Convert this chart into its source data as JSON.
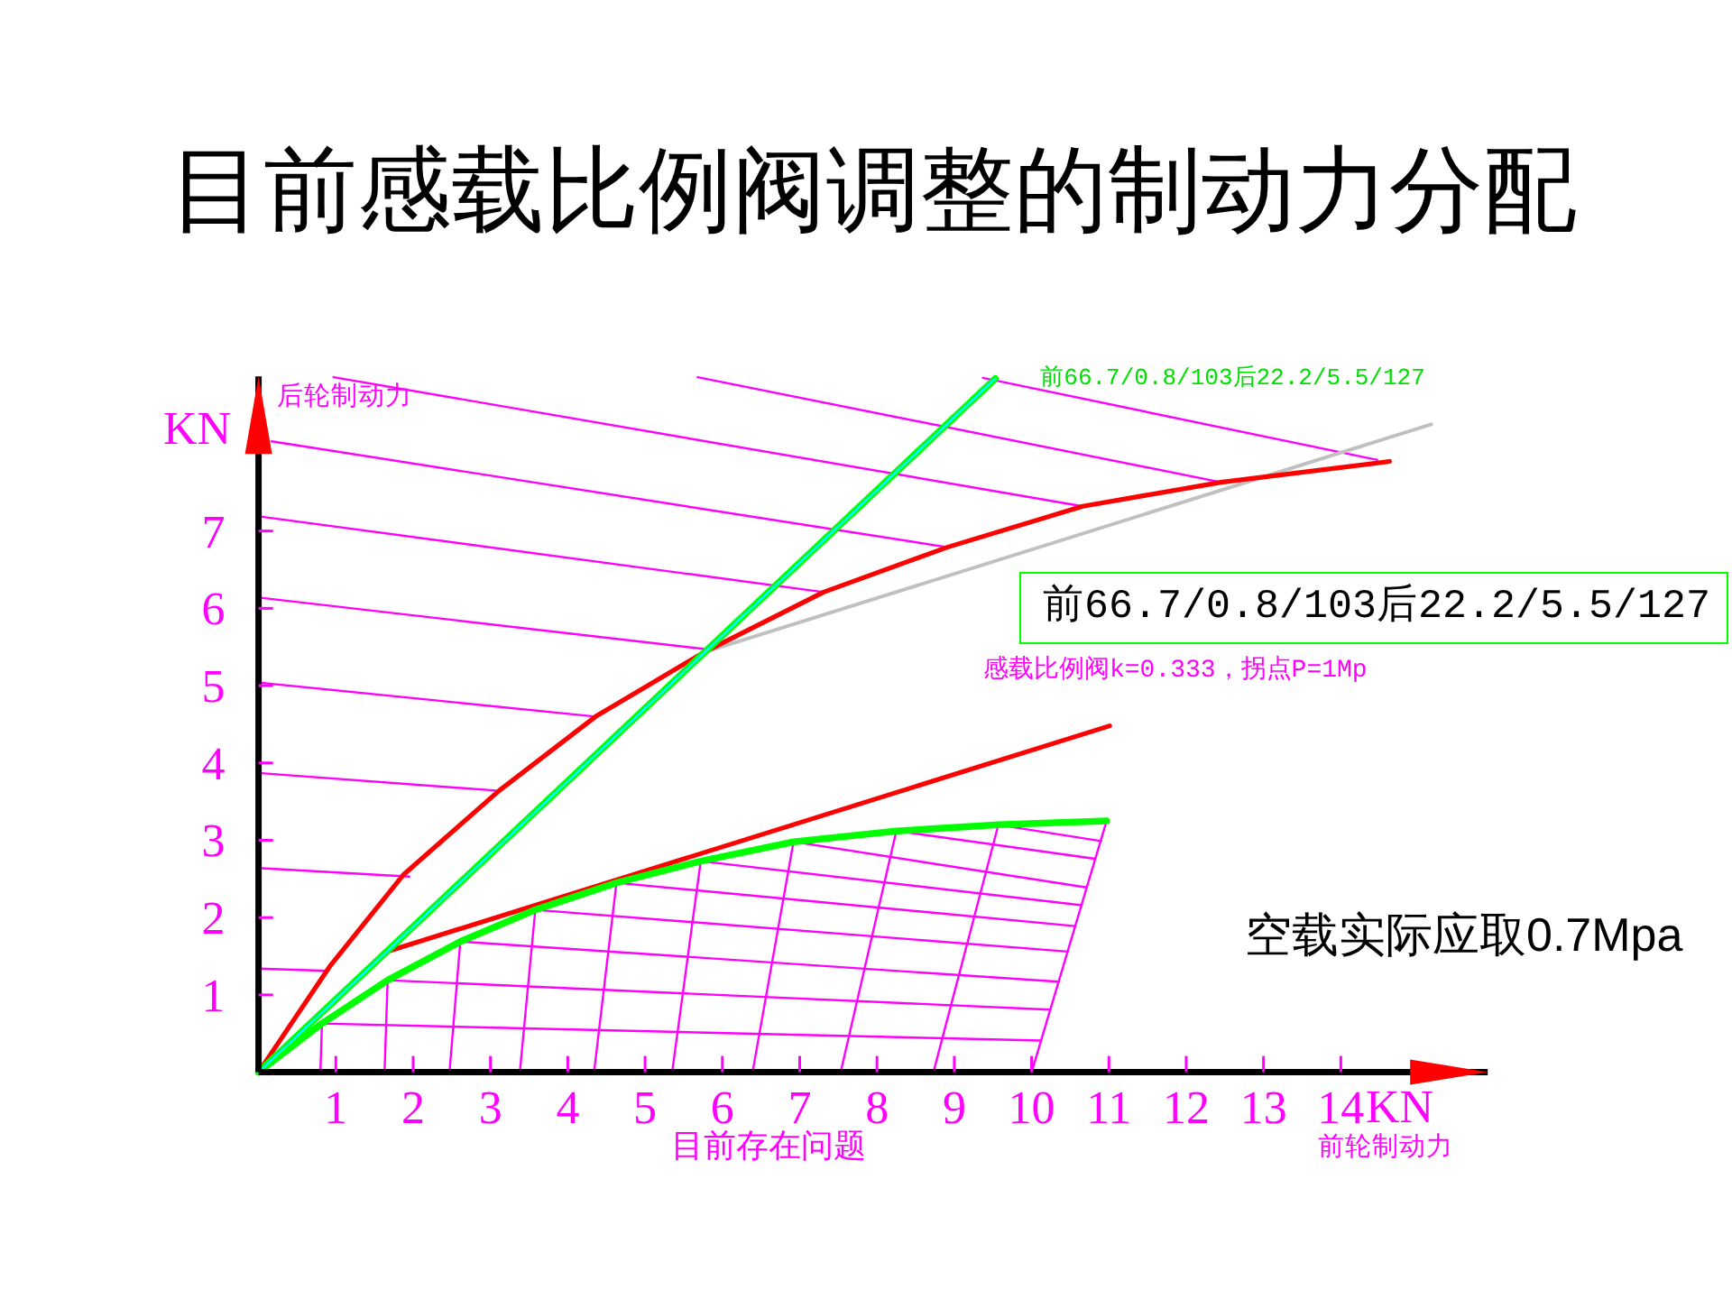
{
  "chart_data": {
    "type": "line",
    "title": "目前感载比例阀调整的制动力分配",
    "xlabel": "前轮制动力",
    "ylabel": "后轮制动力",
    "annotations": [
      "KN",
      "KN",
      "目前存在问题",
      {
        "text": "前66.7/0.8/103后22.2/5.5/127",
        "x": 9.53,
        "y": 8.97
      },
      "前66.7/0.8/103后22.2/5.5/127",
      "感载比例阀k=0.333，拐点P=1Mp",
      "空载实际应取0.7Mpa"
    ],
    "xlim": [
      0,
      15.9
    ],
    "ylim": [
      0,
      9.0
    ],
    "xticks": [
      1,
      2,
      3,
      4,
      5,
      6,
      7,
      8,
      9,
      10,
      11,
      12,
      13,
      14
    ],
    "yticks": [
      1,
      2,
      3,
      4,
      5,
      6,
      7
    ],
    "line_style": "solid",
    "series": [
      {
        "color": "#ff00ff",
        "x": [
          9.37,
          14.47
        ],
        "values": [
          8.98,
          7.92
        ]
      },
      {
        "color": "#ff00ff",
        "x": [
          5.68,
          12.45
        ],
        "values": [
          8.99,
          7.63
        ]
      },
      {
        "color": "#ff00ff",
        "x": [
          0.97,
          10.66
        ],
        "values": [
          8.99,
          7.32
        ]
      },
      {
        "color": "#ff00ff",
        "x": [
          0.17,
          8.91
        ],
        "values": [
          8.16,
          6.79
        ]
      },
      {
        "color": "#ff00ff",
        "x": [
          0,
          7.31
        ],
        "values": [
          7.19,
          6.21
        ]
      },
      {
        "color": "#ff00ff",
        "x": [
          0,
          5.8
        ],
        "values": [
          6.14,
          5.47
        ]
      },
      {
        "color": "#ff00ff",
        "x": [
          0,
          4.36
        ],
        "values": [
          5.04,
          4.6
        ]
      },
      {
        "color": "#ff00ff",
        "x": [
          0,
          3.11
        ],
        "values": [
          3.87,
          3.64
        ]
      },
      {
        "color": "#ff00ff",
        "x": [
          0,
          1.95
        ],
        "values": [
          2.64,
          2.53
        ]
      },
      {
        "color": "#ff00ff",
        "x": [
          0,
          0.9
        ],
        "values": [
          1.34,
          1.31
        ]
      },
      {
        "color": "#ff00ff",
        "x": [
          0.8,
          0.82
        ],
        "values": [
          0,
          0.63
        ]
      },
      {
        "color": "#ff00ff",
        "x": [
          1.63,
          1.67
        ],
        "values": [
          0,
          1.19
        ]
      },
      {
        "color": "#ff00ff",
        "x": [
          2.47,
          2.61
        ],
        "values": [
          0,
          1.69
        ]
      },
      {
        "color": "#ff00ff",
        "x": [
          3.38,
          3.58
        ],
        "values": [
          0,
          2.1
        ]
      },
      {
        "color": "#ff00ff",
        "x": [
          4.34,
          4.63
        ],
        "values": [
          0,
          2.45
        ]
      },
      {
        "color": "#ff00ff",
        "x": [
          5.35,
          5.72
        ],
        "values": [
          0,
          2.73
        ]
      },
      {
        "color": "#ff00ff",
        "x": [
          6.39,
          6.92
        ],
        "values": [
          0,
          2.98
        ]
      },
      {
        "color": "#ff00ff",
        "x": [
          7.53,
          8.25
        ],
        "values": [
          0,
          3.12
        ]
      },
      {
        "color": "#ff00ff",
        "x": [
          8.73,
          9.57
        ],
        "values": [
          0,
          3.2
        ]
      },
      {
        "color": "#ff00ff",
        "x": [
          10.0,
          10.97
        ],
        "values": [
          0,
          3.25
        ]
      },
      {
        "color": "#ff00ff",
        "x": [
          0.82,
          10.12
        ],
        "values": [
          0.63,
          0.41
        ]
      },
      {
        "color": "#ff00ff",
        "x": [
          1.67,
          10.24
        ],
        "values": [
          1.19,
          0.81
        ]
      },
      {
        "color": "#ff00ff",
        "x": [
          2.61,
          10.35
        ],
        "values": [
          1.69,
          1.17
        ]
      },
      {
        "color": "#ff00ff",
        "x": [
          3.58,
          10.47
        ],
        "values": [
          2.1,
          1.56
        ]
      },
      {
        "color": "#ff00ff",
        "x": [
          4.63,
          10.56
        ],
        "values": [
          2.45,
          1.89
        ]
      },
      {
        "color": "#ff00ff",
        "x": [
          5.72,
          10.65
        ],
        "values": [
          2.73,
          2.16
        ]
      },
      {
        "color": "#ff00ff",
        "x": [
          6.92,
          10.71
        ],
        "values": [
          2.98,
          2.39
        ]
      },
      {
        "color": "#ff00ff",
        "x": [
          8.25,
          10.82
        ],
        "values": [
          3.12,
          2.76
        ]
      },
      {
        "color": "#ff00ff",
        "x": [
          9.57,
          10.9
        ],
        "values": [
          3.2,
          2.99
        ]
      },
      {
        "color": "#c0c0c0",
        "x": [
          5.76,
          15.17
        ],
        "values": [
          5.43,
          8.38
        ]
      },
      {
        "color": "#ff0000",
        "x": [
          1.63,
          11.01
        ],
        "values": [
          1.55,
          4.48
        ]
      },
      {
        "color": "#00ff00",
        "x": [
          0,
          0.82,
          1.67,
          2.61,
          3.58,
          4.63,
          5.72,
          6.92,
          8.25,
          9.57,
          10.97
        ],
        "values": [
          0,
          0.63,
          1.19,
          1.69,
          2.1,
          2.45,
          2.73,
          2.98,
          3.12,
          3.2,
          3.25
        ]
      },
      {
        "color": "#ff0000",
        "x": [
          0,
          0.93,
          1.87,
          3.11,
          4.36,
          5.76,
          7.31,
          8.91,
          10.66,
          12.45,
          14.63
        ],
        "values": [
          0,
          1.38,
          2.55,
          3.64,
          4.6,
          5.43,
          6.21,
          6.79,
          7.32,
          7.63,
          7.9
        ]
      },
      {
        "color": "#00ff00",
        "x": [
          0,
          9.53
        ],
        "values": [
          0,
          8.97
        ]
      },
      {
        "color": "#00ffff",
        "x": [
          0,
          9.53
        ],
        "values": [
          0,
          8.97
        ]
      }
    ]
  }
}
